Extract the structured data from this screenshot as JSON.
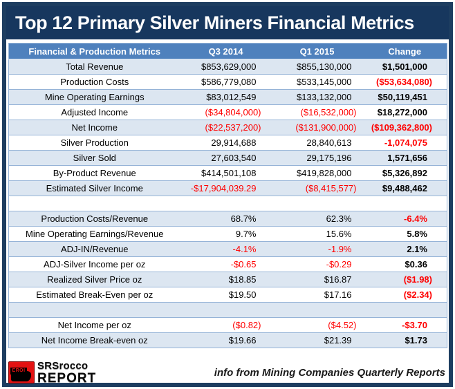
{
  "title": "Top 12 Primary Silver Miners Financial Metrics",
  "colors": {
    "frame_navy": "#1d3d60",
    "title_navy": "#17375e",
    "header_blue": "#4f81bd",
    "row_shade_blue": "#dce6f1",
    "grid_blue": "#95b3d7",
    "negative_red": "#ff0000",
    "badge_red": "#e31212"
  },
  "chart_data": {
    "type": "table",
    "title": "Top 12 Primary Silver Miners Financial Metrics",
    "columns": [
      "Financial & Production Metrics",
      "Q3 2014",
      "Q1 2015",
      "Change"
    ],
    "rows": [
      {
        "label": "Total Revenue",
        "q3": "$853,629,000",
        "q1": "$855,130,000",
        "change": "$1,501,000",
        "neg": []
      },
      {
        "label": "Production Costs",
        "q3": "$586,779,080",
        "q1": "$533,145,000",
        "change": "($53,634,080)",
        "neg": [
          "change"
        ]
      },
      {
        "label": "Mine Operating Earnings",
        "q3": "$83,012,549",
        "q1": "$133,132,000",
        "change": "$50,119,451",
        "neg": []
      },
      {
        "label": "Adjusted Income",
        "q3": "($34,804,000)",
        "q1": "($16,532,000)",
        "change": "$18,272,000",
        "neg": [
          "q3",
          "q1"
        ]
      },
      {
        "label": "Net Income",
        "q3": "($22,537,200)",
        "q1": "($131,900,000)",
        "change": "($109,362,800)",
        "neg": [
          "q3",
          "q1",
          "change"
        ]
      },
      {
        "label": "Silver Production",
        "q3": "29,914,688",
        "q1": "28,840,613",
        "change": "-1,074,075",
        "neg": [
          "change"
        ]
      },
      {
        "label": "Silver Sold",
        "q3": "27,603,540",
        "q1": "29,175,196",
        "change": "1,571,656",
        "neg": []
      },
      {
        "label": "By-Product Revenue",
        "q3": "$414,501,108",
        "q1": "$419,828,000",
        "change": "$5,326,892",
        "neg": []
      },
      {
        "label": "Estimated Silver Income",
        "q3": "-$17,904,039.29",
        "q1": "($8,415,577)",
        "change": "$9,488,462",
        "neg": [
          "q3",
          "q1"
        ]
      },
      {
        "empty": true
      },
      {
        "label": "Production Costs/Revenue",
        "q3": "68.7%",
        "q1": "62.3%",
        "change": "-6.4%",
        "neg": [
          "change"
        ]
      },
      {
        "label": "Mine Operating Earnings/Revenue",
        "q3": "9.7%",
        "q1": "15.6%",
        "change": "5.8%",
        "neg": []
      },
      {
        "label": "ADJ-IN/Revenue",
        "q3": "-4.1%",
        "q1": "-1.9%",
        "change": "2.1%",
        "neg": [
          "q3",
          "q1"
        ]
      },
      {
        "label": "ADJ-Silver Income per oz",
        "q3": "-$0.65",
        "q1": "-$0.29",
        "change": "$0.36",
        "neg": [
          "q3",
          "q1"
        ]
      },
      {
        "label": "Realized Silver Price oz",
        "q3": "$18.85",
        "q1": "$16.87",
        "change": "($1.98)",
        "neg": [
          "change"
        ]
      },
      {
        "label": "Estimated Break-Even per oz",
        "q3": "$19.50",
        "q1": "$17.16",
        "change": "($2.34)",
        "neg": [
          "change"
        ]
      },
      {
        "empty": true
      },
      {
        "label": "Net Income per oz",
        "q3": "($0.82)",
        "q1": "($4.52)",
        "change": "-$3.70",
        "neg": [
          "q3",
          "q1",
          "change"
        ]
      },
      {
        "label": "Net Income Break-even oz",
        "q3": "$19.66",
        "q1": "$21.39",
        "change": "$1.73",
        "neg": []
      }
    ]
  },
  "footer": {
    "badge_text": "EROI",
    "logo_line1": "SRSrocco",
    "logo_line2": "REPORT",
    "note": "info from Mining Companies Quarterly Reports"
  }
}
